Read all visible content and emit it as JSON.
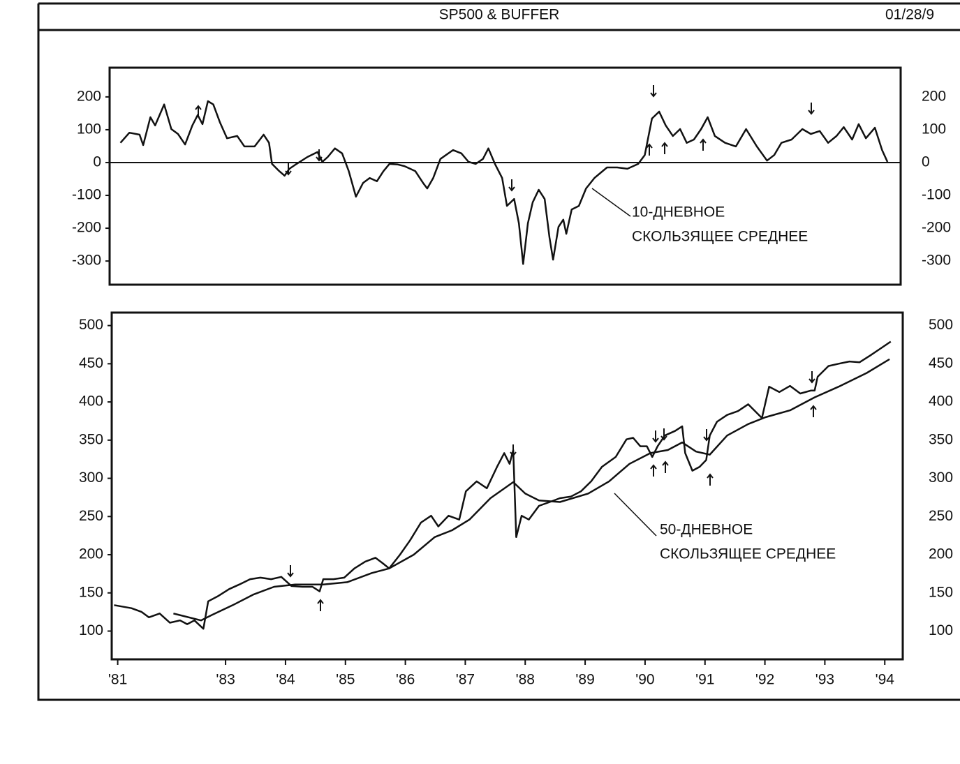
{
  "header": {
    "title": "SP500 & BUFFER",
    "date": "01/28/9"
  },
  "chart_data": [
    {
      "type": "line",
      "annotations": [
        "10-ДНЕВНОЕ",
        "СКОЛЬЗЯЩЕЕ СРЕДНЕЕ"
      ],
      "xlim": [
        1981.1,
        1994.3
      ],
      "ylim": [
        -372,
        289
      ],
      "yticks": [
        200,
        100,
        0,
        -100,
        -200,
        -300
      ],
      "baseline": true,
      "series": [
        {
          "color": "#111111",
          "x": [
            1981.28,
            1981.43,
            1981.6,
            1981.66,
            1981.78,
            1981.86,
            1982.01,
            1982.13,
            1982.24,
            1982.36,
            1982.48,
            1982.57,
            1982.65,
            1982.74,
            1982.83,
            1982.94,
            1983.06,
            1983.23,
            1983.35,
            1983.52,
            1983.67,
            1983.76,
            1983.81,
            1983.93,
            1984.02,
            1984.1,
            1984.22,
            1984.4,
            1984.57,
            1984.65,
            1984.74,
            1984.86,
            1984.98,
            1985.09,
            1985.21,
            1985.33,
            1985.44,
            1985.56,
            1985.67,
            1985.77,
            1985.91,
            1986.02,
            1986.2,
            1986.33,
            1986.4,
            1986.5,
            1986.62,
            1986.83,
            1986.97,
            1987.09,
            1987.21,
            1987.33,
            1987.42,
            1987.53,
            1987.65,
            1987.73,
            1987.85,
            1987.93,
            1988.0,
            1988.08,
            1988.16,
            1988.26,
            1988.36,
            1988.44,
            1988.5,
            1988.59,
            1988.67,
            1988.72,
            1988.81,
            1988.93,
            1989.05,
            1989.19,
            1989.4,
            1989.57,
            1989.74,
            1989.92,
            1990.03,
            1990.15,
            1990.27,
            1990.38,
            1990.5,
            1990.62,
            1990.73,
            1990.85,
            1990.97,
            1991.08,
            1991.2,
            1991.37,
            1991.55,
            1991.72,
            1991.9,
            1992.07,
            1992.19,
            1992.31,
            1992.48,
            1992.66,
            1992.8,
            1992.95,
            1993.09,
            1993.23,
            1993.35,
            1993.49,
            1993.6,
            1993.72,
            1993.87,
            1993.99,
            1994.08
          ],
          "values": [
            60,
            91,
            85,
            53,
            138,
            113,
            177,
            102,
            87,
            55,
            113,
            145,
            117,
            187,
            177,
            123,
            74,
            81,
            49,
            49,
            85,
            60,
            -4,
            -26,
            -40,
            -19,
            -4,
            17,
            32,
            2,
            17,
            43,
            28,
            -26,
            -104,
            -62,
            -47,
            -57,
            -26,
            -4,
            -6,
            -11,
            -26,
            -62,
            -79,
            -47,
            11,
            38,
            28,
            2,
            -4,
            11,
            43,
            -4,
            -47,
            -132,
            -111,
            -185,
            -309,
            -185,
            -121,
            -83,
            -111,
            -228,
            -296,
            -196,
            -174,
            -217,
            -143,
            -132,
            -79,
            -47,
            -15,
            -15,
            -19,
            -4,
            23,
            134,
            155,
            113,
            81,
            102,
            60,
            70,
            102,
            138,
            81,
            60,
            49,
            102,
            49,
            6,
            23,
            60,
            70,
            102,
            87,
            96,
            60,
            81,
            108,
            70,
            117,
            74,
            106,
            38,
            2
          ]
        }
      ]
    },
    {
      "type": "line",
      "annotations": [
        "50-ДНЕВНОЕ",
        "СКОЛЬЗЯЩЕЕ СРЕДНЕЕ"
      ],
      "xlim": [
        1981.1,
        1994.3
      ],
      "ylim": [
        63,
        517
      ],
      "yticks": [
        500,
        450,
        400,
        350,
        300,
        250,
        200,
        150,
        100
      ],
      "xticks": [
        {
          "value": 1981.2,
          "label": "'81"
        },
        {
          "value": 1983,
          "label": "'83"
        },
        {
          "value": 1984,
          "label": "'84"
        },
        {
          "value": 1985,
          "label": "'85"
        },
        {
          "value": 1986,
          "label": "'86"
        },
        {
          "value": 1987,
          "label": "'87"
        },
        {
          "value": 1988,
          "label": "'88"
        },
        {
          "value": 1989,
          "label": "'89"
        },
        {
          "value": 1990,
          "label": "'90"
        },
        {
          "value": 1991,
          "label": "'91"
        },
        {
          "value": 1992,
          "label": "'92"
        },
        {
          "value": 1993,
          "label": "'93"
        },
        {
          "value": 1994,
          "label": "'94"
        }
      ],
      "series": [
        {
          "color": "#111111",
          "x": [
            1981.14,
            1981.43,
            1981.6,
            1981.72,
            1981.9,
            1982.07,
            1982.24,
            1982.36,
            1982.48,
            1982.63,
            1982.71,
            1982.88,
            1983.06,
            1983.23,
            1983.41,
            1983.58,
            1983.76,
            1983.93,
            1984.1,
            1984.28,
            1984.45,
            1984.57,
            1984.63,
            1984.8,
            1984.98,
            1985.15,
            1985.33,
            1985.5,
            1985.62,
            1985.73,
            1985.91,
            1986.08,
            1986.26,
            1986.43,
            1986.55,
            1986.72,
            1986.9,
            1987.01,
            1987.19,
            1987.36,
            1987.53,
            1987.65,
            1987.74,
            1987.8,
            1987.85,
            1987.94,
            1988.06,
            1988.23,
            1988.41,
            1988.58,
            1988.76,
            1988.93,
            1989.1,
            1989.28,
            1989.51,
            1989.69,
            1989.8,
            1989.92,
            1990.03,
            1990.12,
            1990.21,
            1990.33,
            1990.5,
            1990.62,
            1990.67,
            1990.79,
            1990.91,
            1991.02,
            1991.08,
            1991.2,
            1991.37,
            1991.55,
            1991.72,
            1991.95,
            1992.07,
            1992.24,
            1992.42,
            1992.59,
            1992.77,
            1992.83,
            1992.88,
            1993.06,
            1993.23,
            1993.41,
            1993.58,
            1993.76,
            1993.93,
            1994.1
          ],
          "values": [
            134,
            130,
            125,
            118,
            123,
            111,
            114,
            109,
            114,
            103,
            139,
            146,
            155,
            161,
            168,
            170,
            168,
            171,
            159,
            158,
            158,
            152,
            168,
            168,
            170,
            182,
            191,
            196,
            189,
            182,
            200,
            219,
            242,
            251,
            237,
            251,
            246,
            283,
            296,
            287,
            315,
            333,
            319,
            337,
            223,
            251,
            246,
            264,
            269,
            274,
            276,
            283,
            296,
            315,
            328,
            351,
            353,
            342,
            342,
            328,
            342,
            356,
            362,
            368,
            333,
            310,
            315,
            324,
            356,
            374,
            383,
            388,
            397,
            379,
            420,
            413,
            421,
            411,
            415,
            415,
            433,
            447,
            450,
            453,
            452,
            461,
            470,
            479
          ]
        },
        {
          "color": "#111111",
          "x": [
            1982.13,
            1982.59,
            1982.77,
            1983.12,
            1983.47,
            1983.81,
            1984.16,
            1984.63,
            1985.03,
            1985.44,
            1985.73,
            1986.14,
            1986.49,
            1986.78,
            1987.07,
            1987.42,
            1987.8,
            1988.0,
            1988.23,
            1988.58,
            1989.05,
            1989.4,
            1989.74,
            1990.09,
            1990.38,
            1990.62,
            1990.85,
            1991.08,
            1991.37,
            1991.72,
            1992.01,
            1992.42,
            1992.83,
            1993.23,
            1993.7,
            1994.08
          ],
          "values": [
            123,
            114,
            121,
            134,
            148,
            158,
            161,
            161,
            164,
            176,
            182,
            200,
            223,
            232,
            246,
            274,
            295,
            280,
            271,
            269,
            280,
            296,
            319,
            333,
            337,
            347,
            335,
            331,
            356,
            371,
            380,
            389,
            406,
            420,
            438,
            456
          ]
        }
      ]
    }
  ]
}
